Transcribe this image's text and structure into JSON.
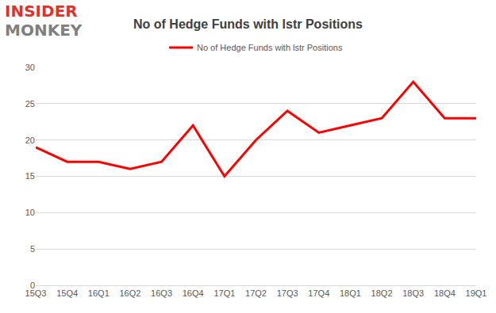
{
  "chart_data": {
    "type": "line",
    "title": "No of Hedge Funds with lstr Positions",
    "annotations": [
      "INSIDER",
      "MONKEY"
    ],
    "categories": [
      "15Q3",
      "15Q4",
      "16Q1",
      "16Q2",
      "16Q3",
      "16Q4",
      "17Q1",
      "17Q2",
      "17Q3",
      "17Q4",
      "18Q1",
      "18Q2",
      "18Q3",
      "18Q4",
      "19Q1"
    ],
    "series": [
      {
        "name": "No of Hedge Funds with lstr Positions",
        "color": "#ff0000",
        "values": [
          19,
          17,
          17,
          16,
          17,
          22,
          15,
          20,
          24,
          21,
          22,
          23,
          28,
          23,
          23
        ]
      }
    ],
    "ylim": [
      0,
      30
    ],
    "yticks": [
      0,
      5,
      10,
      15,
      20,
      25,
      30
    ],
    "grid": true,
    "legend": "top"
  }
}
